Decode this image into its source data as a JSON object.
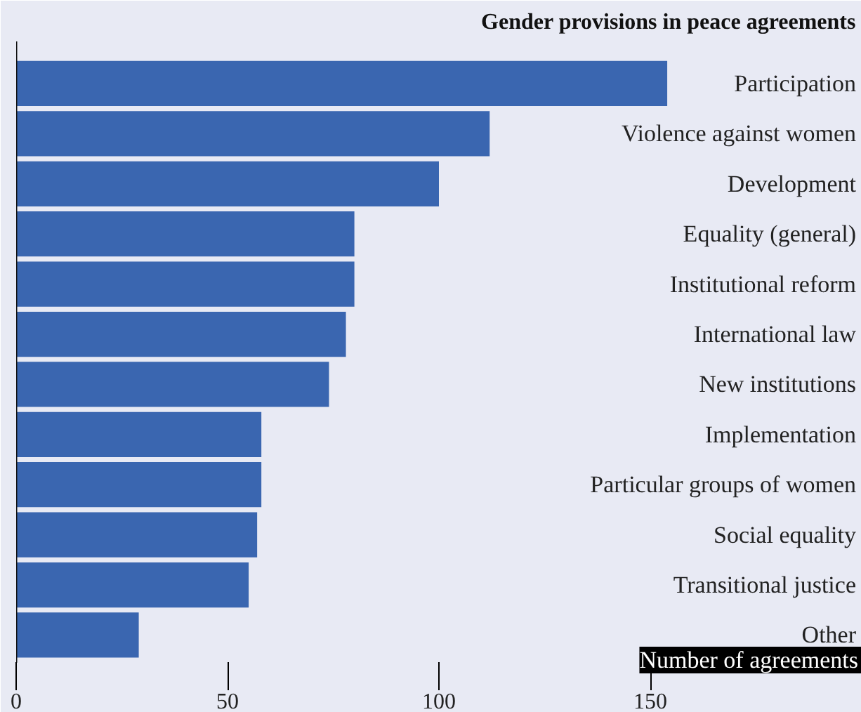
{
  "chart_data": {
    "type": "bar",
    "orientation": "horizontal",
    "title": "Gender provisions in peace agreements",
    "xlabel": "Number of agreements",
    "categories": [
      "Participation",
      "Violence against women",
      "Development",
      "Equality (general)",
      "Institutional reform",
      "International law",
      "New institutions",
      "Implementation",
      "Particular groups of women",
      "Social equality",
      "Transitional justice",
      "Other"
    ],
    "values": [
      154,
      112,
      100,
      80,
      80,
      78,
      74,
      58,
      58,
      57,
      55,
      29
    ],
    "color": "#3a66b0",
    "xlim": [
      0,
      200
    ],
    "xticks": [
      0,
      50,
      100,
      150
    ],
    "grid": false
  }
}
